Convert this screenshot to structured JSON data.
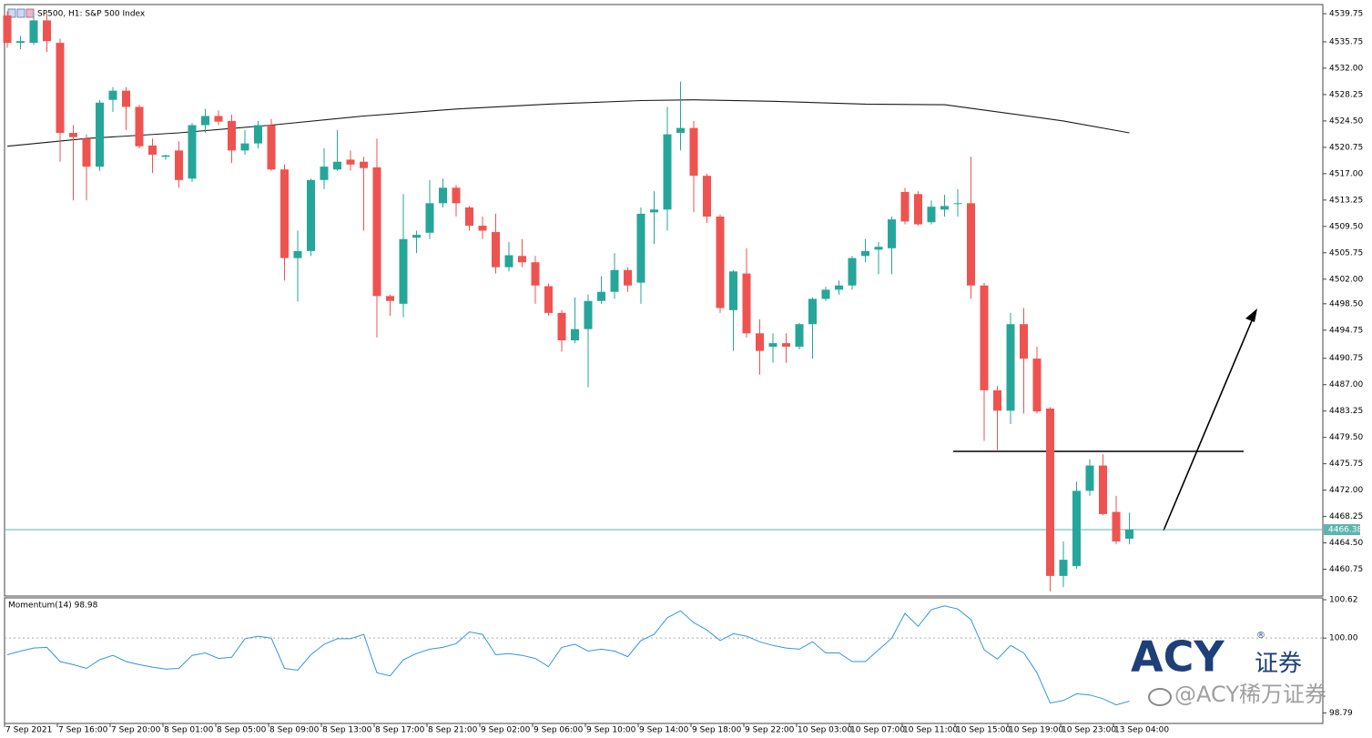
{
  "chart_data": {
    "type": "candlestick",
    "title": "SP500, H1:  S&P 500 Index",
    "categories": [
      "7 Sep 2021",
      null,
      null,
      null,
      "7 Sep 16:00",
      null,
      null,
      null,
      "7 Sep 20:00",
      null,
      null,
      null,
      "8 Sep 01:00",
      null,
      null,
      null,
      "8 Sep 05:00",
      null,
      null,
      null,
      "8 Sep 09:00",
      null,
      null,
      null,
      "8 Sep 13:00",
      null,
      null,
      null,
      "8 Sep 17:00",
      null,
      null,
      null,
      "8 Sep 21:00",
      null,
      null,
      null,
      "9 Sep 02:00",
      null,
      null,
      null,
      "9 Sep 06:00",
      null,
      null,
      null,
      "9 Sep 10:00",
      null,
      null,
      null,
      "9 Sep 14:00",
      null,
      null,
      null,
      "9 Sep 18:00",
      null,
      null,
      null,
      "9 Sep 22:00",
      null,
      null,
      null,
      "10 Sep 03:00",
      null,
      null,
      null,
      "10 Sep 07:00",
      null,
      null,
      null,
      "10 Sep 11:00",
      null,
      null,
      null,
      "10 Sep 15:00",
      null,
      null,
      null,
      "10 Sep 19:00",
      null,
      null,
      null,
      "10 Sep 23:00",
      null,
      null,
      null,
      "13 Sep 04:00",
      null
    ],
    "open": [
      4539.5,
      4535.6,
      4535.6,
      4538.8,
      4535.6,
      4522.8,
      4522.0,
      4518.0,
      4527.5,
      4528.8,
      4526.5,
      4521.0,
      4519.4,
      4520.3,
      4516.3,
      4523.9,
      4525.2,
      4524.5,
      4520.3,
      4521.3,
      4523.9,
      4517.6,
      4505.0,
      4506.0,
      4516.1,
      4517.6,
      4519.0,
      4518.7,
      4517.9,
      4499.6,
      4498.5,
      4507.9,
      4508.6,
      4512.8,
      4515.0,
      4512.2,
      4509.6,
      4508.7,
      4503.7,
      4505.3,
      4504.4,
      4501.0,
      4497.2,
      4493.3,
      4494.9,
      4498.9,
      4500.2,
      4503.3,
      4501.5,
      4511.5,
      4511.9,
      4522.8,
      4523.5,
      4516.7,
      4510.9,
      4497.6,
      4502.8,
      4494.3,
      4492.4,
      4492.9,
      4492.4,
      4495.6,
      4499.2,
      4500.5,
      4501.1,
      4505.3,
      4506.2,
      4506.4,
      4514.4,
      4514.1,
      4510.1,
      4511.9,
      4512.7,
      4512.8,
      4501.1,
      4486.2,
      4483.3,
      4495.6,
      4490.7,
      4483.6,
      4459.8,
      4461.2,
      4471.9,
      4475.5,
      4468.9,
      4465.1
    ],
    "high": [
      4540.1,
      4536.6,
      4539.75,
      4539.75,
      4536.2,
      4523.9,
      4522.6,
      4527.5,
      4529.3,
      4529.3,
      4526.8,
      4522.0,
      4519.7,
      4521.6,
      4524.2,
      4526.2,
      4526.0,
      4525.4,
      4523.2,
      4524.5,
      4524.8,
      4518.3,
      4508.9,
      4516.3,
      4520.6,
      4523.2,
      4520.3,
      4519.4,
      4522.0,
      4499.8,
      4514.1,
      4508.9,
      4516.1,
      4516.3,
      4515.4,
      4512.4,
      4510.9,
      4511.3,
      4507.3,
      4507.7,
      4505.3,
      4501.4,
      4497.6,
      4499.4,
      4499.8,
      4502.4,
      4505.7,
      4503.7,
      4512.2,
      4514.5,
      4526.5,
      4530.1,
      4524.5,
      4517.0,
      4511.2,
      4503.3,
      4506.4,
      4496.3,
      4494.3,
      4494.3,
      4495.8,
      4499.4,
      4500.9,
      4501.8,
      4505.3,
      4507.7,
      4507.3,
      4510.9,
      4515.0,
      4514.5,
      4513.2,
      4514.0,
      4514.8,
      4519.4,
      4501.5,
      4486.8,
      4497.2,
      4497.9,
      4492.4,
      4483.8,
      4464.7,
      4473.2,
      4476.4,
      4477.1,
      4471.2,
      4468.8
    ],
    "low": [
      4534.9,
      4534.7,
      4535.3,
      4534.3,
      4518.7,
      4513.2,
      4513.2,
      4517.4,
      4525.8,
      4523.2,
      4520.6,
      4517.1,
      4519.0,
      4515.0,
      4515.8,
      4522.8,
      4523.9,
      4518.5,
      4519.7,
      4520.6,
      4517.4,
      4501.8,
      4498.8,
      4505.3,
      4514.8,
      4517.4,
      4517.4,
      4508.9,
      4493.7,
      4496.8,
      4496.6,
      4505.7,
      4507.7,
      4512.2,
      4510.9,
      4508.9,
      4507.7,
      4502.8,
      4503.1,
      4503.7,
      4498.5,
      4496.8,
      4491.7,
      4492.9,
      4486.6,
      4498.5,
      4499.2,
      4500.2,
      4498.5,
      4507.0,
      4508.9,
      4520.3,
      4511.5,
      4510.0,
      4497.2,
      4491.8,
      4493.7,
      4488.4,
      4490.1,
      4490.1,
      4492.0,
      4490.7,
      4498.9,
      4499.8,
      4500.5,
      4504.4,
      4502.7,
      4502.7,
      4509.8,
      4509.6,
      4509.8,
      4510.9,
      4510.9,
      4499.2,
      4479.0,
      4477.7,
      4481.4,
      4482.9,
      4482.9,
      4457.6,
      4458.2,
      4460.8,
      4471.2,
      4468.4,
      4464.3,
      4464.3
    ],
    "close": [
      4535.6,
      4535.85,
      4538.8,
      4535.85,
      4522.8,
      4522.2,
      4518.0,
      4527.1,
      4528.8,
      4526.5,
      4520.9,
      4519.7,
      4519.6,
      4516.1,
      4523.9,
      4525.2,
      4524.4,
      4520.3,
      4521.3,
      4523.9,
      4517.6,
      4505.0,
      4506.0,
      4516.1,
      4518.0,
      4518.7,
      4518.3,
      4517.8,
      4499.6,
      4498.9,
      4507.7,
      4508.3,
      4512.8,
      4515.0,
      4512.8,
      4509.6,
      4508.9,
      4503.7,
      4505.4,
      4504.4,
      4501.1,
      4497.2,
      4493.3,
      4494.9,
      4498.9,
      4500.2,
      4503.3,
      4501.1,
      4511.3,
      4511.9,
      4522.6,
      4523.5,
      4516.7,
      4510.9,
      4497.9,
      4503.1,
      4494.3,
      4491.8,
      4492.9,
      4492.4,
      4495.6,
      4499.2,
      4500.5,
      4501.1,
      4505.0,
      4506.0,
      4506.6,
      4510.5,
      4510.2,
      4509.8,
      4512.3,
      4512.4,
      4512.8,
      4501.1,
      4486.2,
      4483.3,
      4495.6,
      4490.7,
      4483.2,
      4459.8,
      4462.1,
      4471.9,
      4475.5,
      4468.6,
      4464.7,
      4466.38
    ],
    "up_color": "#26a69a",
    "down_color": "#ef5350",
    "price_line_color": "#5bb5ad",
    "ma": {
      "color": "#1a1a1a",
      "x": [
        0,
        6,
        13,
        20,
        27,
        34,
        41,
        48,
        52,
        58,
        65,
        71,
        75,
        80,
        85
      ],
      "values": [
        4520.9,
        4522.0,
        4522.8,
        4523.9,
        4525.2,
        4526.2,
        4526.9,
        4527.4,
        4527.5,
        4527.3,
        4526.9,
        4526.8,
        4525.8,
        4524.5,
        4522.8
      ]
    },
    "ylim": [
      4456.94,
      4541.05
    ],
    "yticks": [
      4539.75,
      4535.75,
      {
        "value": 4532,
        "label": "4532.00"
      },
      4528.25,
      {
        "value": 4524.5,
        "label": "4524.50"
      },
      4520.75,
      {
        "value": 4517,
        "label": "4517.00"
      },
      4513.25,
      {
        "value": 4509.5,
        "label": "4509.50"
      },
      4505.75,
      {
        "value": 4502,
        "label": "4502.00"
      },
      {
        "value": 4498.5,
        "label": "4498.50"
      },
      4494.75,
      4490.75,
      {
        "value": 4487,
        "label": "4487.00"
      },
      4483.25,
      {
        "value": 4479.5,
        "label": "4479.50"
      },
      4475.75,
      {
        "value": 4472,
        "label": "4472.00"
      },
      4468.25,
      {
        "value": 4464.5,
        "label": "4464.50"
      },
      4460.75
    ],
    "indicator": {
      "title": "Momentum(14) 98.98",
      "color": "#2f97e0",
      "values": [
        99.73,
        99.79,
        99.84,
        99.85,
        99.62,
        99.57,
        99.51,
        99.65,
        99.72,
        99.62,
        99.57,
        99.53,
        99.5,
        99.51,
        99.72,
        99.76,
        99.67,
        99.69,
        99.99,
        100.03,
        100.0,
        99.51,
        99.48,
        99.73,
        99.9,
        99.99,
        99.99,
        100.06,
        99.44,
        99.39,
        99.65,
        99.75,
        99.82,
        99.85,
        99.91,
        100.1,
        100.06,
        99.73,
        99.75,
        99.72,
        99.67,
        99.54,
        99.85,
        99.9,
        99.79,
        99.82,
        99.79,
        99.7,
        99.96,
        100.06,
        100.33,
        100.44,
        100.25,
        100.13,
        99.96,
        100.07,
        100.03,
        99.94,
        99.88,
        99.84,
        99.82,
        99.94,
        99.76,
        99.76,
        99.62,
        99.62,
        99.81,
        100.0,
        100.4,
        100.19,
        100.46,
        100.52,
        100.47,
        100.3,
        99.81,
        99.66,
        99.88,
        99.76,
        99.44,
        98.95,
        98.99,
        99.1,
        99.08,
        99.02,
        98.92,
        98.98
      ],
      "ylim": [
        98.62,
        100.65
      ],
      "yticks": [
        100.62,
        {
          "value": 100,
          "label": "100.00"
        },
        98.79
      ],
      "levels": [
        100
      ]
    },
    "watermark": {
      "logo": "ACY",
      "logo_sub": "证券",
      "registered": "®",
      "credit": "@ACY稀万证券"
    }
  }
}
